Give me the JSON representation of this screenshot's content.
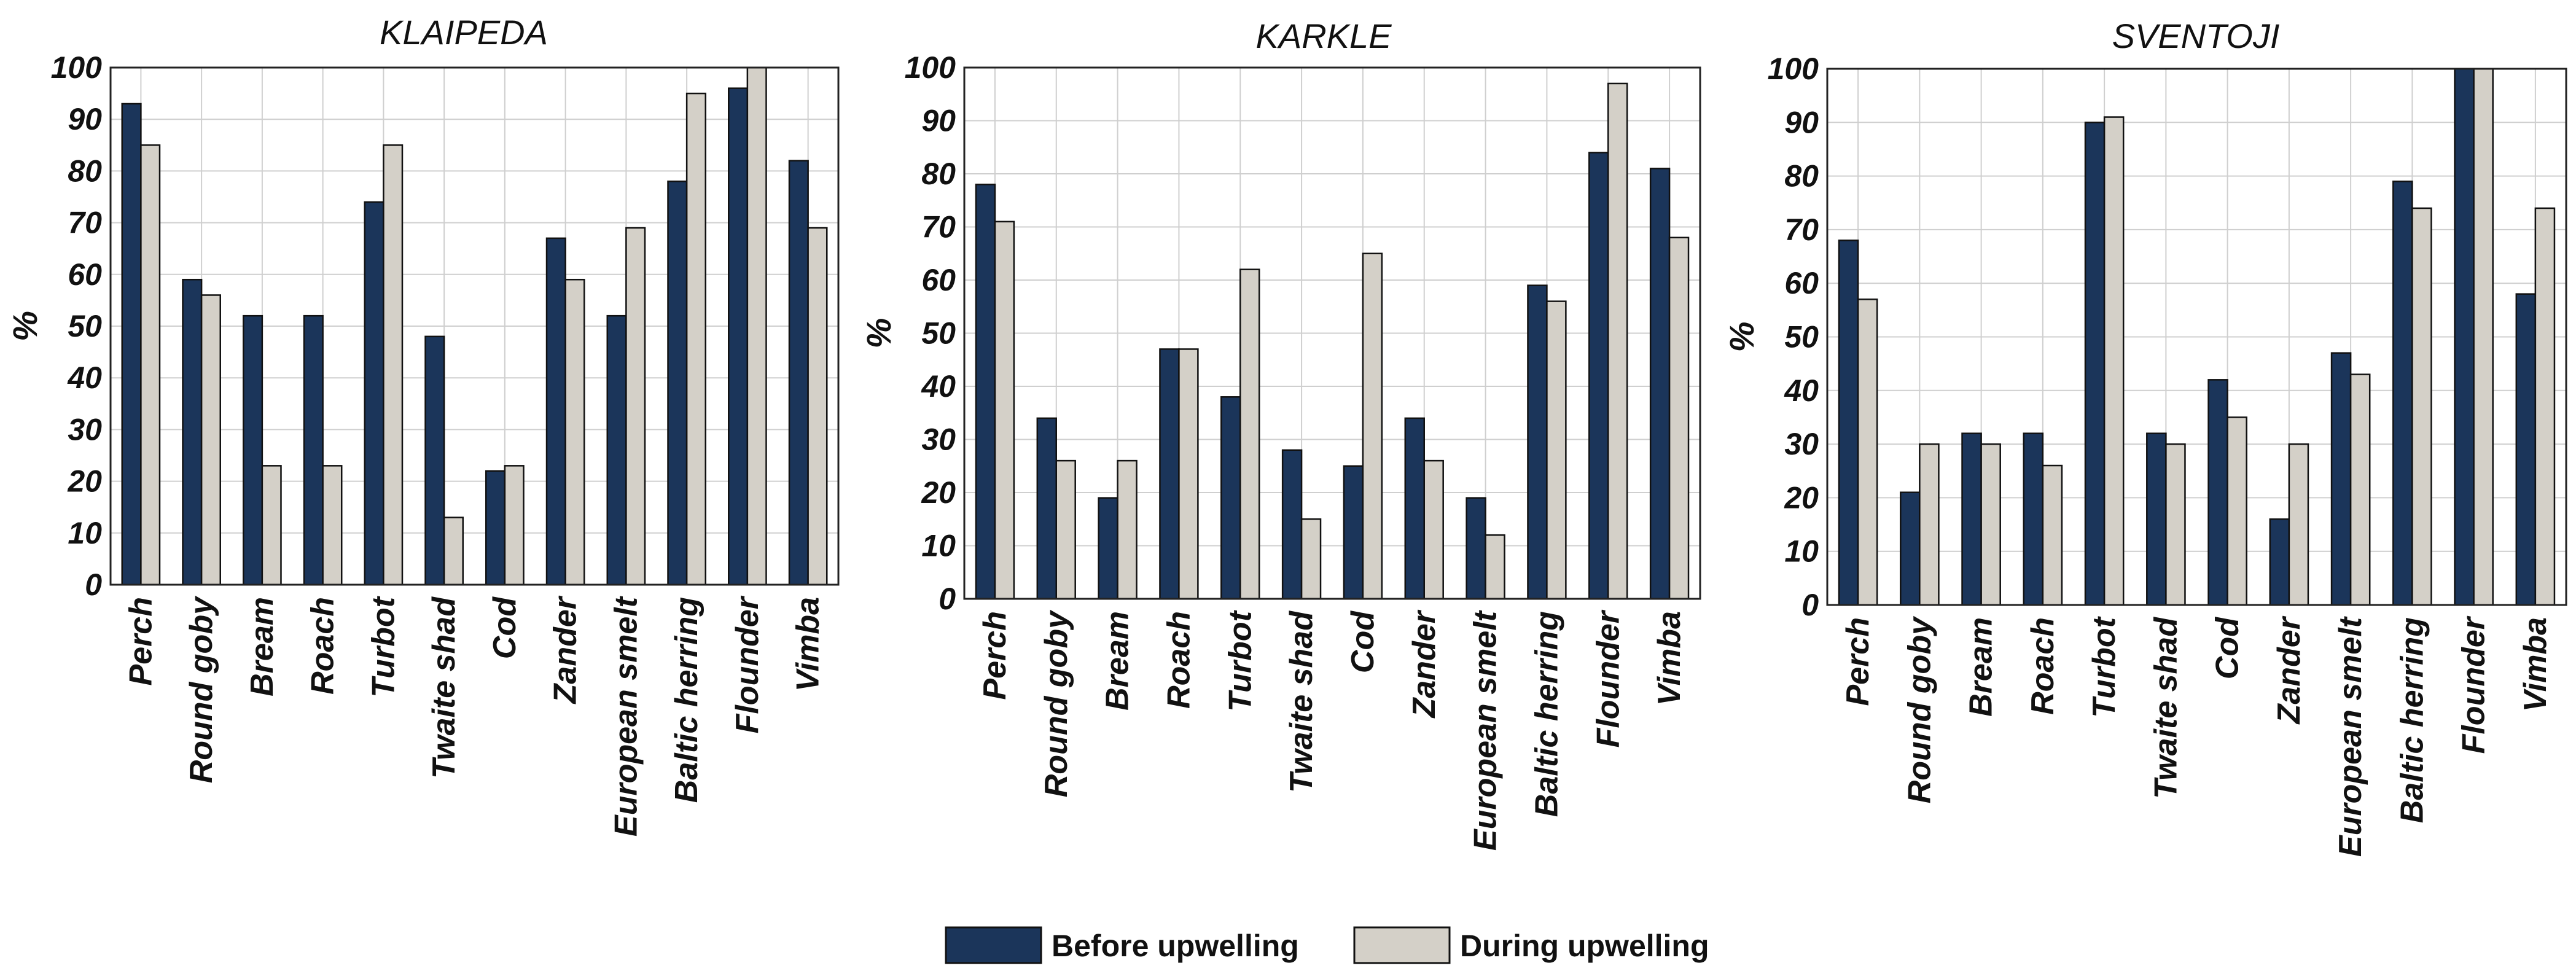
{
  "chart_data": [
    {
      "type": "bar",
      "title": "KLAIPEDA",
      "ylabel": "%",
      "xlabel": "",
      "ylim": [
        0,
        100
      ],
      "yticks": [
        "0",
        "10",
        "20",
        "30",
        "40",
        "50",
        "60",
        "70",
        "80",
        "90",
        "100"
      ],
      "grid": true,
      "categories": [
        "Perch",
        "Round goby",
        "Bream",
        "Roach",
        "Turbot",
        "Twaite shad",
        "Cod",
        "Zander",
        "European smelt",
        "Baltic herring",
        "Flounder",
        "Vimba"
      ],
      "series": [
        {
          "name": "Before upwelling",
          "values": [
            93,
            59,
            52,
            52,
            74,
            48,
            22,
            67,
            52,
            78,
            96,
            82
          ]
        },
        {
          "name": "During upwelling",
          "values": [
            85,
            56,
            23,
            23,
            85,
            13,
            23,
            59,
            69,
            95,
            100,
            69
          ]
        }
      ]
    },
    {
      "type": "bar",
      "title": "KARKLE",
      "ylabel": "%",
      "xlabel": "",
      "ylim": [
        0,
        100
      ],
      "yticks": [
        "0",
        "10",
        "20",
        "30",
        "40",
        "50",
        "60",
        "70",
        "80",
        "90",
        "100"
      ],
      "grid": true,
      "categories": [
        "Perch",
        "Round goby",
        "Bream",
        "Roach",
        "Turbot",
        "Twaite shad",
        "Cod",
        "Zander",
        "European smelt",
        "Baltic herring",
        "Flounder",
        "Vimba"
      ],
      "series": [
        {
          "name": "Before upwelling",
          "values": [
            78,
            34,
            19,
            47,
            38,
            28,
            25,
            34,
            19,
            59,
            84,
            81
          ]
        },
        {
          "name": "During upwelling",
          "values": [
            71,
            26,
            26,
            47,
            62,
            15,
            65,
            26,
            12,
            56,
            97,
            68
          ]
        }
      ]
    },
    {
      "type": "bar",
      "title": "SVENTOJI",
      "ylabel": "%",
      "xlabel": "",
      "ylim": [
        0,
        100
      ],
      "yticks": [
        "0",
        "10",
        "20",
        "30",
        "40",
        "50",
        "60",
        "70",
        "80",
        "90",
        "100"
      ],
      "grid": true,
      "categories": [
        "Perch",
        "Round goby",
        "Bream",
        "Roach",
        "Turbot",
        "Twaite shad",
        "Cod",
        "Zander",
        "European smelt",
        "Baltic herring",
        "Flounder",
        "Vimba"
      ],
      "series": [
        {
          "name": "Before upwelling",
          "values": [
            68,
            21,
            32,
            32,
            90,
            32,
            42,
            16,
            47,
            79,
            100,
            58
          ]
        },
        {
          "name": "During upwelling",
          "values": [
            57,
            30,
            30,
            26,
            91,
            30,
            35,
            30,
            43,
            74,
            100,
            74
          ]
        }
      ]
    }
  ],
  "legend": {
    "items": [
      {
        "label": "Before upwelling",
        "color": "#1b355a"
      },
      {
        "label": "During upwelling",
        "color": "#d4d0c8"
      }
    ]
  },
  "colors": {
    "before": "#1b355a",
    "during": "#d4d0c8"
  }
}
